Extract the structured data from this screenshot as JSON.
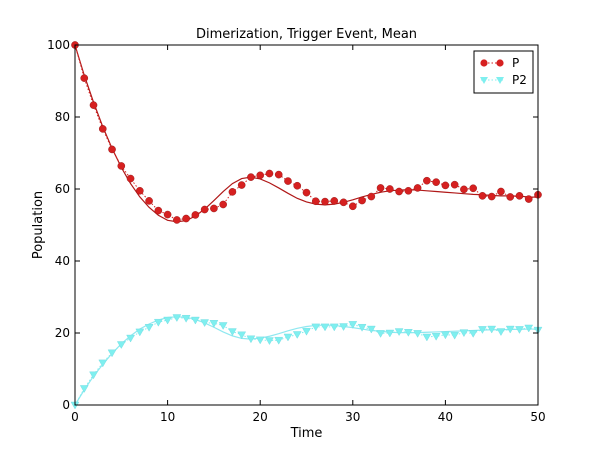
{
  "chart_data": {
    "type": "line",
    "title": "Dimerization, Trigger Event, Mean",
    "xlabel": "Time",
    "ylabel": "Population",
    "xlim": [
      0,
      50
    ],
    "ylim": [
      0,
      100
    ],
    "xticks": [
      0,
      10,
      20,
      30,
      40,
      50
    ],
    "yticks": [
      0,
      20,
      40,
      60,
      80,
      100
    ],
    "grid": false,
    "legend_position": "top-right",
    "series": [
      {
        "name": "P",
        "color": "#d62020",
        "marker": "circle",
        "line_style": "dotted",
        "x": [
          0,
          1,
          2,
          3,
          4,
          5,
          6,
          7,
          8,
          9,
          10,
          11,
          12,
          13,
          14,
          15,
          16,
          17,
          18,
          19,
          20,
          21,
          22,
          23,
          24,
          25,
          26,
          27,
          28,
          29,
          30,
          31,
          32,
          33,
          34,
          35,
          36,
          37,
          38,
          39,
          40,
          41,
          42,
          43,
          44,
          45,
          46,
          47,
          48,
          49,
          50
        ],
        "y": [
          100,
          90.8,
          83.3,
          76.7,
          71.0,
          66.4,
          62.9,
          59.5,
          56.7,
          54.0,
          52.9,
          51.4,
          51.8,
          52.8,
          54.3,
          54.6,
          55.7,
          59.2,
          61.1,
          63.3,
          63.8,
          64.3,
          64.0,
          62.2,
          60.9,
          59.0,
          56.6,
          56.5,
          56.7,
          56.3,
          55.2,
          56.8,
          57.9,
          60.3,
          60.0,
          59.3,
          59.5,
          60.3,
          62.3,
          61.9,
          61.0,
          61.2,
          59.9,
          60.2,
          58.1,
          57.9,
          59.3,
          57.8,
          58.1,
          57.2,
          58.4
        ]
      },
      {
        "name": "P2",
        "color": "#7fefef",
        "marker": "triangle-down",
        "line_style": "dotted",
        "x": [
          0,
          1,
          2,
          3,
          4,
          5,
          6,
          7,
          8,
          9,
          10,
          11,
          12,
          13,
          14,
          15,
          16,
          17,
          18,
          19,
          20,
          21,
          22,
          23,
          24,
          25,
          26,
          27,
          28,
          29,
          30,
          31,
          32,
          33,
          34,
          35,
          36,
          37,
          38,
          39,
          40,
          41,
          42,
          43,
          44,
          45,
          46,
          47,
          48,
          49,
          50
        ],
        "y": [
          0,
          4.6,
          8.4,
          11.7,
          14.5,
          16.8,
          18.6,
          20.3,
          21.6,
          23.0,
          23.6,
          24.3,
          24.1,
          23.6,
          22.9,
          22.7,
          22.1,
          20.4,
          19.5,
          18.4,
          18.1,
          17.9,
          18.0,
          18.9,
          19.6,
          20.5,
          21.7,
          21.7,
          21.7,
          21.8,
          22.4,
          21.6,
          21.1,
          19.9,
          20.0,
          20.4,
          20.2,
          19.9,
          18.9,
          19.1,
          19.5,
          19.4,
          20.1,
          19.9,
          21.0,
          21.1,
          20.4,
          21.1,
          21.0,
          21.4,
          20.8
        ]
      },
      {
        "name": "",
        "color": "#b01818",
        "marker": "none",
        "line_style": "solid",
        "x": [
          0,
          1,
          2,
          3,
          4,
          5,
          6,
          7,
          8,
          9,
          10,
          11,
          12,
          13,
          14,
          15,
          16,
          17,
          18,
          19,
          20,
          21,
          22,
          23,
          24,
          25,
          26,
          27,
          28,
          29,
          30,
          31,
          32,
          33,
          34,
          35,
          36,
          37,
          38,
          39,
          40,
          41,
          42,
          43,
          44,
          45,
          46,
          47,
          48,
          49,
          50
        ],
        "y": [
          100,
          91.6,
          84.1,
          77.3,
          71.3,
          66.0,
          61.5,
          57.8,
          54.9,
          52.7,
          51.3,
          50.9,
          51.2,
          52.5,
          54.4,
          56.8,
          59.3,
          61.5,
          62.9,
          63.3,
          62.8,
          61.7,
          60.3,
          58.8,
          57.4,
          56.4,
          55.8,
          55.6,
          55.8,
          56.3,
          57.0,
          57.8,
          58.5,
          59.1,
          59.5,
          59.7,
          59.8,
          59.7,
          59.5,
          59.3,
          59.1,
          58.9,
          58.7,
          58.5,
          58.4,
          58.2,
          58.1,
          58.1,
          58.0,
          57.8,
          57.7
        ]
      },
      {
        "name": "",
        "color": "#8fe8f0",
        "marker": "none",
        "line_style": "solid",
        "x": [
          0,
          1,
          2,
          3,
          4,
          5,
          6,
          7,
          8,
          9,
          10,
          11,
          12,
          13,
          14,
          15,
          16,
          17,
          18,
          19,
          20,
          21,
          22,
          23,
          24,
          25,
          26,
          27,
          28,
          29,
          30,
          31,
          32,
          33,
          34,
          35,
          36,
          37,
          38,
          39,
          40,
          41,
          42,
          43,
          44,
          45,
          46,
          47,
          48,
          49,
          50
        ],
        "y": [
          0,
          4.2,
          8.0,
          11.3,
          14.3,
          17.0,
          19.2,
          21.1,
          22.5,
          23.6,
          24.3,
          24.5,
          24.4,
          23.8,
          22.8,
          21.6,
          20.3,
          19.2,
          18.5,
          18.3,
          18.6,
          19.1,
          19.8,
          20.6,
          21.3,
          21.8,
          22.1,
          22.2,
          22.1,
          21.8,
          21.5,
          21.1,
          20.7,
          20.5,
          20.2,
          20.1,
          20.1,
          20.1,
          20.2,
          20.3,
          20.4,
          20.5,
          20.6,
          20.7,
          20.8,
          20.9,
          20.9,
          21.0,
          21.0,
          21.1,
          21.1
        ]
      }
    ]
  }
}
